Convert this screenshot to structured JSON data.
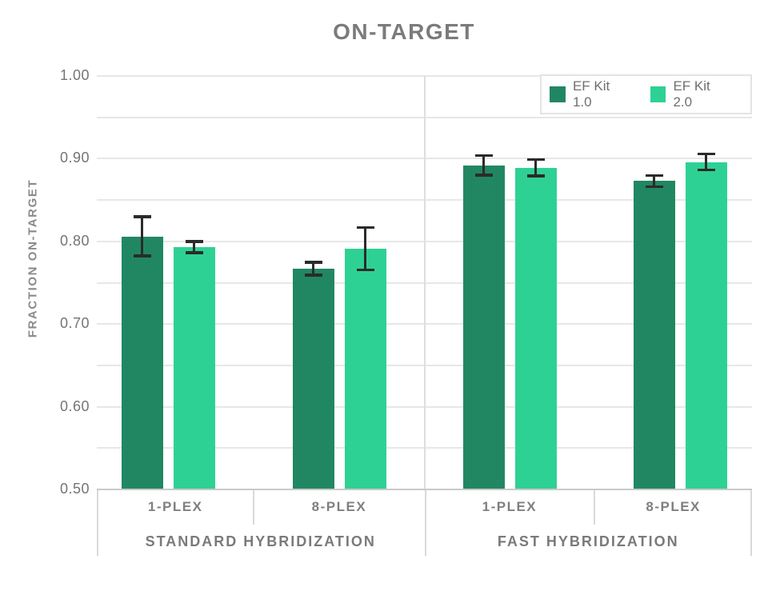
{
  "title": "ON-TARGET",
  "chart_data": {
    "type": "bar",
    "title": "ON-TARGET",
    "xlabel": "",
    "ylabel": "FRACTION ON-TARGET",
    "ylim": [
      0.5,
      1.0
    ],
    "yticks": [
      1.0,
      0.9,
      0.8,
      0.7,
      0.6,
      0.5
    ],
    "minor_grid_step": 0.05,
    "grid": true,
    "legend_position": "top-right",
    "error_bars": true,
    "series": [
      {
        "name": "EF Kit 1.0",
        "color": "#218762"
      },
      {
        "name": "EF Kit 2.0",
        "color": "#2ed194"
      }
    ],
    "groups": [
      {
        "label": "STANDARD HYBRIDIZATION",
        "categories": [
          {
            "label": "1-PLEX",
            "bars": [
              {
                "series": "EF Kit 1.0",
                "value": 0.806,
                "error": 0.024
              },
              {
                "series": "EF Kit 2.0",
                "value": 0.793,
                "error": 0.007
              }
            ]
          },
          {
            "label": "8-PLEX",
            "bars": [
              {
                "series": "EF Kit 1.0",
                "value": 0.767,
                "error": 0.008
              },
              {
                "series": "EF Kit 2.0",
                "value": 0.791,
                "error": 0.026
              }
            ]
          }
        ]
      },
      {
        "label": "FAST HYBRIDIZATION",
        "categories": [
          {
            "label": "1-PLEX",
            "bars": [
              {
                "series": "EF Kit 1.0",
                "value": 0.892,
                "error": 0.012
              },
              {
                "series": "EF Kit 2.0",
                "value": 0.889,
                "error": 0.01
              }
            ]
          },
          {
            "label": "8-PLEX",
            "bars": [
              {
                "series": "EF Kit 1.0",
                "value": 0.873,
                "error": 0.007
              },
              {
                "series": "EF Kit 2.0",
                "value": 0.896,
                "error": 0.01
              }
            ]
          }
        ]
      }
    ],
    "colors": {
      "title_text": "#7b7b7b",
      "axis_text": "#757575",
      "gridline": "#e7e7e7",
      "axis_line": "#c9c9c9",
      "error_bar": "#2b2b2b",
      "legend_border": "#e4e4e4"
    }
  }
}
